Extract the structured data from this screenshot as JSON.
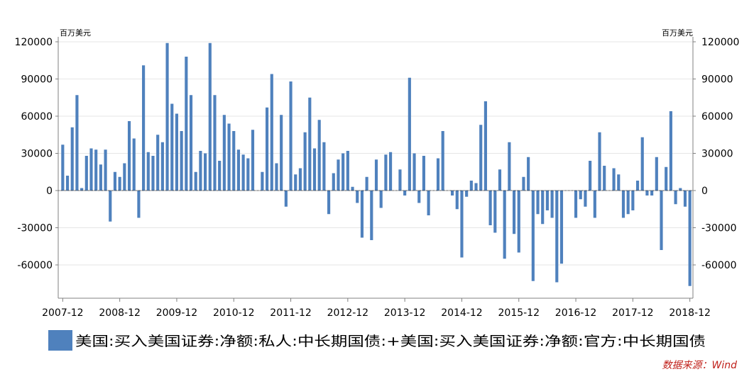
{
  "chart_data": {
    "type": "bar",
    "unit_left": "百万美元",
    "unit_right": "百万美元",
    "ylim": [
      -85000,
      125000
    ],
    "yticks": [
      120000,
      90000,
      60000,
      30000,
      0,
      -30000,
      -60000
    ],
    "ytick_labels": [
      "120000",
      "90000",
      "60000",
      "30000",
      "0",
      "-30000",
      "-60000"
    ],
    "x_tick_labels": [
      "2007-12",
      "2008-12",
      "2009-12",
      "2010-12",
      "2011-12",
      "2012-12",
      "2013-12",
      "2014-12",
      "2015-12",
      "2016-12",
      "2017-12",
      "2018-12"
    ],
    "grid": true,
    "bar_color": "#4f81bd",
    "series": [
      {
        "name": "美国:买入美国证券:净额:私人:中长期国债:+美国:买入美国证券:净额:官方:中长期国债",
        "values": [
          37000,
          12000,
          51000,
          77000,
          2000,
          28000,
          34000,
          33000,
          21000,
          33000,
          -25000,
          15000,
          11000,
          22000,
          56000,
          42000,
          -22000,
          101000,
          31000,
          28000,
          45000,
          39000,
          119000,
          70000,
          62000,
          48000,
          108000,
          77000,
          15000,
          32000,
          30000,
          119000,
          77000,
          24000,
          61000,
          54000,
          48000,
          33000,
          29000,
          26000,
          49000,
          0,
          15000,
          67000,
          94000,
          22000,
          61000,
          -13000,
          88000,
          13000,
          18000,
          47000,
          75000,
          34000,
          57000,
          39000,
          -19000,
          14000,
          25000,
          30000,
          32000,
          3000,
          -10000,
          -38000,
          11000,
          -40000,
          25000,
          -14000,
          29000,
          31000,
          0,
          17000,
          -4000,
          91000,
          30000,
          -10000,
          28000,
          -20000,
          0,
          26000,
          48000,
          0,
          -4000,
          -15000,
          -54000,
          -5000,
          8000,
          6000,
          53000,
          72000,
          -28000,
          -34000,
          17000,
          -55000,
          39000,
          -35000,
          -50000,
          11000,
          27000,
          -73000,
          -19000,
          -27000,
          -16000,
          -22000,
          -74000,
          -59000,
          0,
          0,
          -22000,
          -7000,
          -13000,
          24000,
          -22000,
          47000,
          20000,
          0,
          18000,
          13000,
          -22000,
          -19000,
          -16000,
          8000,
          43000,
          -4000,
          -4000,
          27000,
          -48000,
          19000,
          64000,
          -11000,
          2000,
          -13000,
          -77000
        ]
      }
    ]
  },
  "legend": {
    "label": "美国:买入美国证券:净额:私人:中长期国债:+美国:买入美国证券:净额:官方:中长期国债"
  },
  "source": "数据来源：Wind"
}
